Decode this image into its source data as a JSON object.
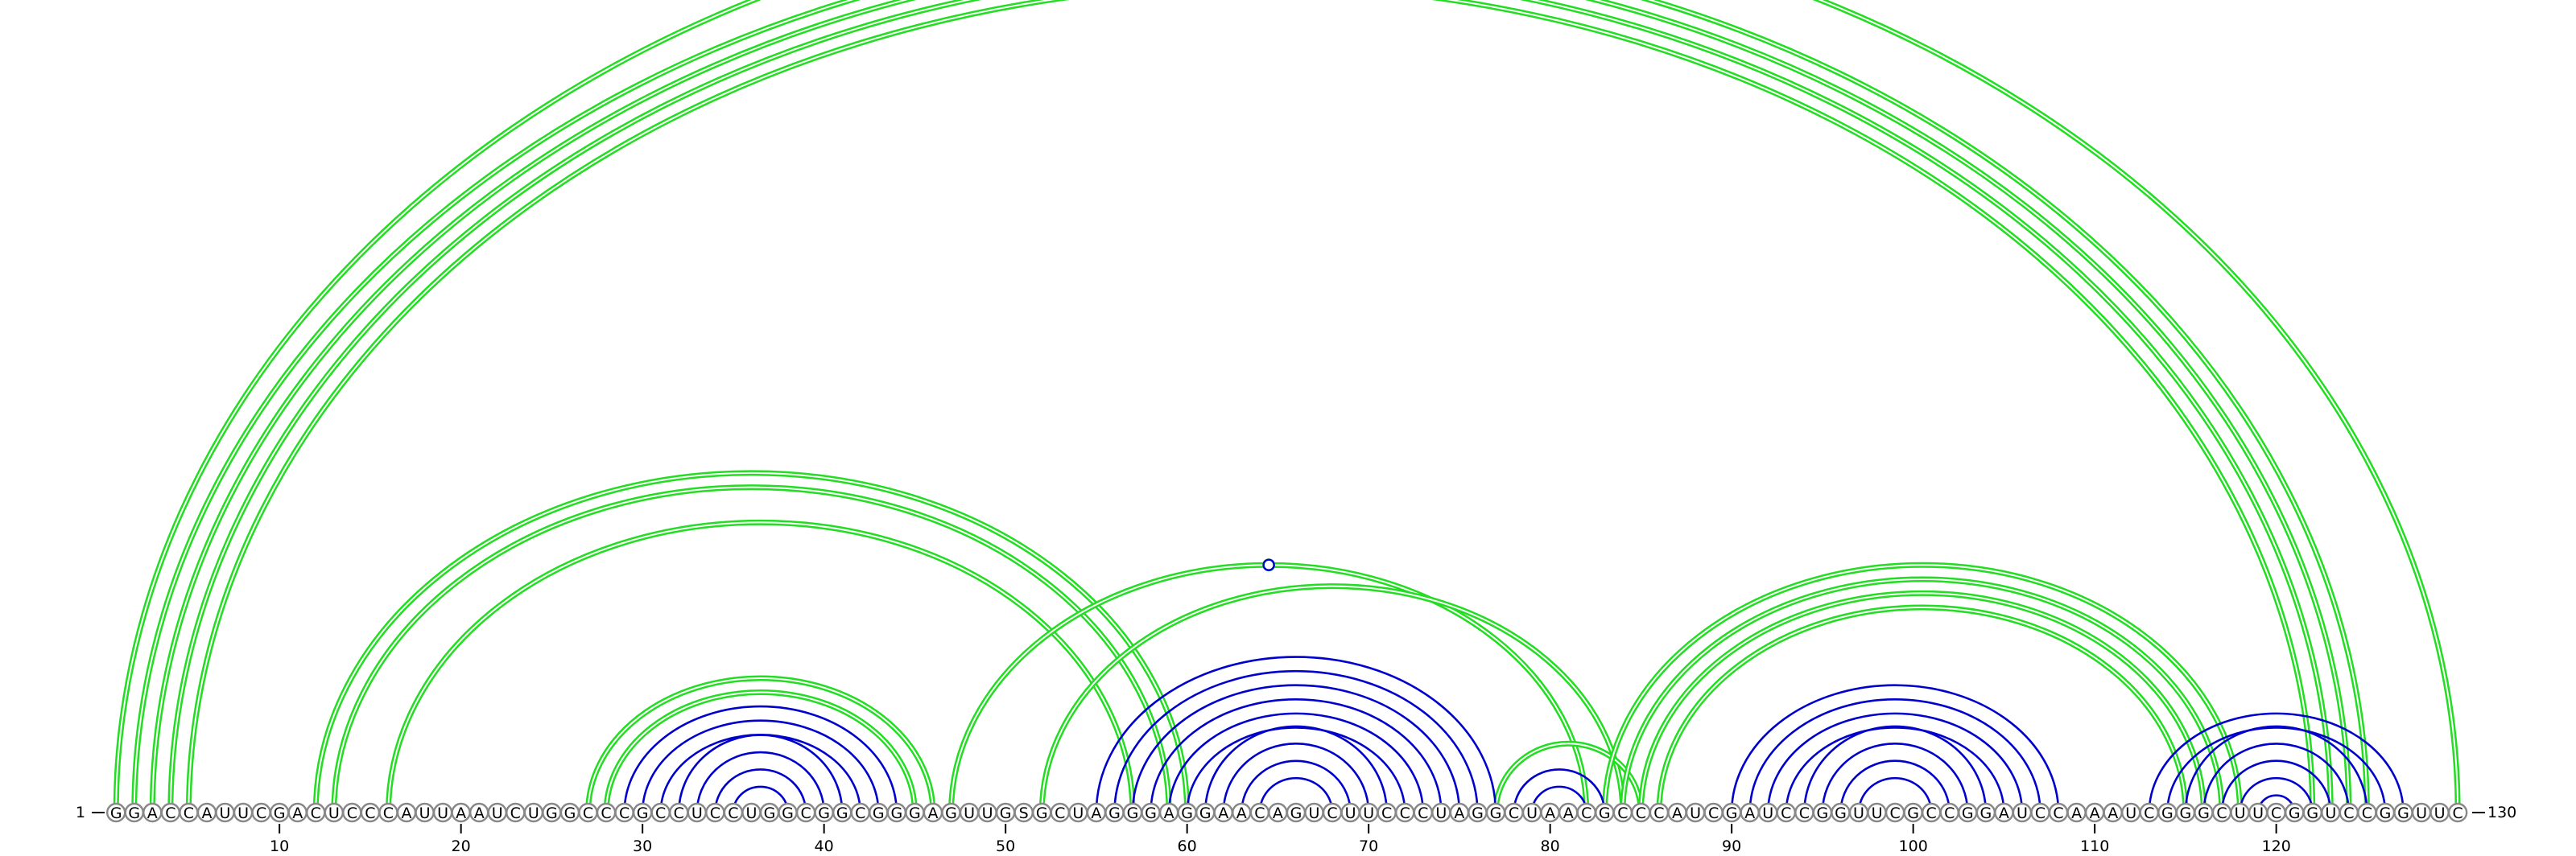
{
  "sequence": "GGACCAUUCGACUCCCAUUAAUCUGGCCCGCCUCCUGGCGGCGGGAGUUGSGCUAGGGAGGAACAGUCUUCCCUAGGCUAACGCCCAUCGAUCCGGUUCGCCGGAUCCAAAUCGGGCUUCGGUCCGGUUC",
  "start_label": "1",
  "end_label": "130",
  "tick_labels": [
    "10",
    "20",
    "30",
    "40",
    "50",
    "60",
    "70",
    "80",
    "90",
    "100",
    "110",
    "120"
  ],
  "colors": {
    "stem": "#0000cc",
    "pseudoknot": "#22dd22"
  },
  "chart_data": {
    "type": "arc-diagram",
    "length": 130,
    "tick_positions": [
      10,
      20,
      30,
      40,
      50,
      60,
      70,
      80,
      90,
      100,
      110,
      120
    ],
    "blue_pairs": [
      [
        29,
        44
      ],
      [
        30,
        43
      ],
      [
        31,
        42
      ],
      [
        32,
        41
      ],
      [
        33,
        40
      ],
      [
        34,
        39
      ],
      [
        35,
        38
      ],
      [
        55,
        77
      ],
      [
        56,
        76
      ],
      [
        57,
        75
      ],
      [
        58,
        74
      ],
      [
        59,
        73
      ],
      [
        60,
        72
      ],
      [
        61,
        71
      ],
      [
        62,
        70
      ],
      [
        63,
        69
      ],
      [
        64,
        68
      ],
      [
        78,
        83
      ],
      [
        79,
        82
      ],
      [
        90,
        108
      ],
      [
        91,
        107
      ],
      [
        92,
        106
      ],
      [
        93,
        105
      ],
      [
        94,
        104
      ],
      [
        95,
        103
      ],
      [
        96,
        102
      ],
      [
        97,
        101
      ],
      [
        113,
        127
      ],
      [
        114,
        126
      ],
      [
        115,
        125
      ],
      [
        116,
        124
      ],
      [
        117,
        123
      ],
      [
        118,
        122
      ],
      [
        119,
        121
      ]
    ],
    "green_pairs": [
      [
        1,
        130
      ],
      [
        2,
        125
      ],
      [
        3,
        124
      ],
      [
        4,
        123
      ],
      [
        5,
        122
      ],
      [
        12,
        60
      ],
      [
        13,
        59
      ],
      [
        16,
        57
      ],
      [
        27,
        46
      ],
      [
        28,
        45
      ],
      [
        47,
        82
      ],
      [
        52,
        84
      ],
      [
        77,
        85
      ],
      [
        83,
        118
      ],
      [
        84,
        117
      ],
      [
        85,
        116
      ],
      [
        86,
        115
      ]
    ],
    "markers": [
      {
        "position": 64.5,
        "height_index": 1,
        "style": "filled",
        "color": "pseudoknot"
      },
      {
        "position": 64.5,
        "height_index": 3,
        "style": "open",
        "color": "stem"
      },
      {
        "position": 98.5,
        "height_index": 1,
        "style": "open",
        "color": "stem"
      },
      {
        "position": 119.5,
        "height_index": 2,
        "style": "open",
        "color": "stem"
      },
      {
        "position": 119.5,
        "height_index": 3,
        "style": "open",
        "color": "stem"
      },
      {
        "position": 119.5,
        "height_index": 4,
        "style": "open",
        "color": "stem"
      }
    ]
  }
}
